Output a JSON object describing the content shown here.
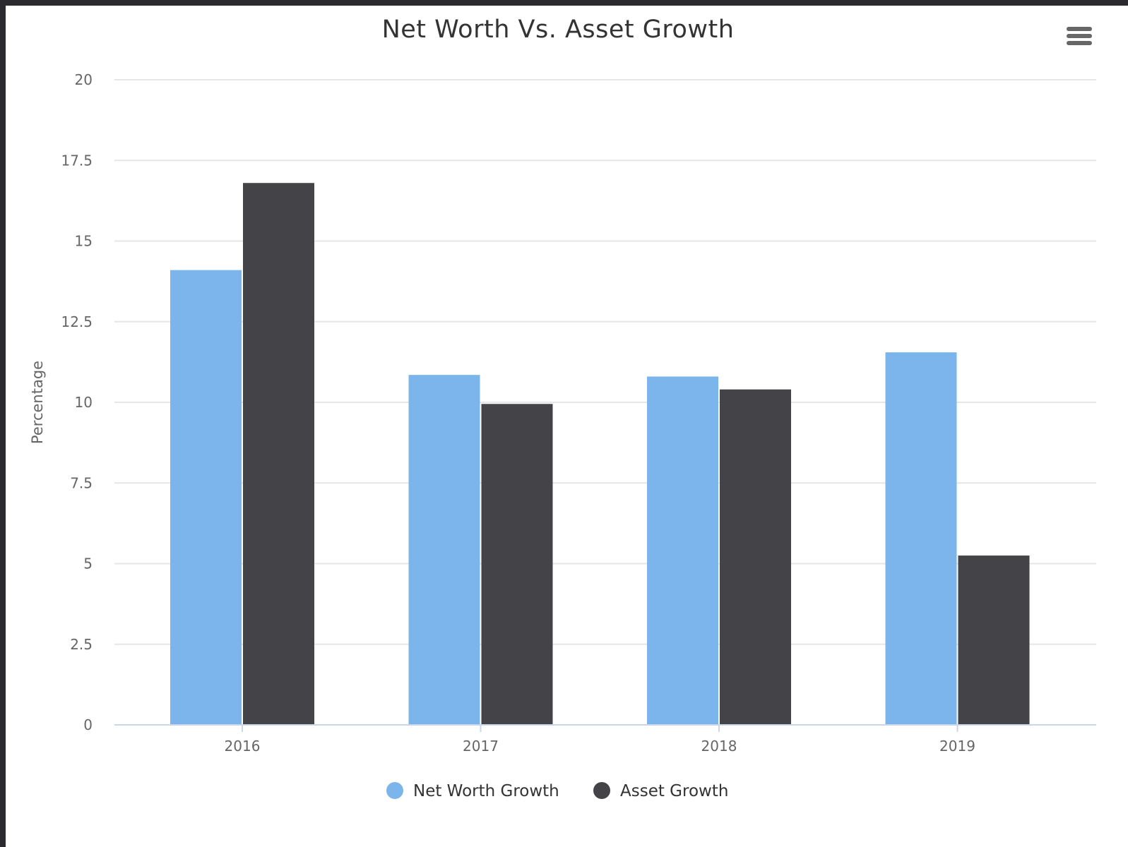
{
  "chart_data": {
    "type": "bar",
    "title": "Net Worth Vs. Asset Growth",
    "xlabel": "",
    "ylabel": "Percentage",
    "categories": [
      "2016",
      "2017",
      "2018",
      "2019"
    ],
    "ylim": [
      0,
      20
    ],
    "yticks": [
      "0",
      "2.5",
      "5",
      "7.5",
      "10",
      "12.5",
      "15",
      "17.5",
      "20"
    ],
    "grid": true,
    "legend_position": "bottom-center",
    "series": [
      {
        "name": "Net Worth Growth",
        "color": "#7cb5ec",
        "values": [
          14.1,
          10.85,
          10.8,
          11.55
        ]
      },
      {
        "name": "Asset Growth",
        "color": "#434348",
        "values": [
          16.8,
          9.95,
          10.4,
          5.25
        ]
      }
    ]
  },
  "menu_icon": "hamburger-menu-icon"
}
